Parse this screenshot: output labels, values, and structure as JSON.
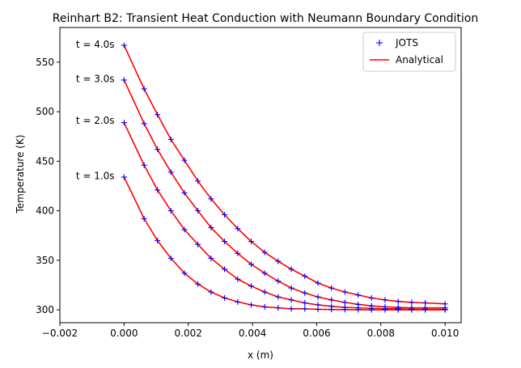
{
  "chart_data": {
    "type": "line",
    "title": "Reinhart B2: Transient Heat Conduction with Neumann Boundary Condition",
    "xlabel": "x (m)",
    "ylabel": "Temperature (K)",
    "xlim": [
      -0.002,
      0.0105
    ],
    "ylim": [
      287,
      585
    ],
    "xticks": [
      -0.002,
      0.0,
      0.002,
      0.004,
      0.006,
      0.008,
      0.01
    ],
    "xtick_labels": [
      "−0.002",
      "0.000",
      "0.002",
      "0.004",
      "0.006",
      "0.008",
      "0.010"
    ],
    "yticks": [
      300,
      350,
      400,
      450,
      500,
      550
    ],
    "ytick_labels": [
      "300",
      "350",
      "400",
      "450",
      "500",
      "550"
    ],
    "grid": false,
    "legend_position": "top-right",
    "legend": [
      {
        "label": "JOTS",
        "marker": "+",
        "color": "#0000ff"
      },
      {
        "label": "Analytical",
        "line": "solid",
        "color": "#ff0000"
      }
    ],
    "annotations": [
      {
        "text": "t = 1.0s",
        "x": -0.0015,
        "y": 435
      },
      {
        "text": "t = 2.0s",
        "x": -0.0015,
        "y": 491
      },
      {
        "text": "t = 3.0s",
        "x": -0.0015,
        "y": 533
      },
      {
        "text": "t = 4.0s",
        "x": -0.0015,
        "y": 568
      }
    ],
    "x": [
      0.0,
      0.000625,
      0.00104,
      0.00146,
      0.00188,
      0.0023,
      0.00271,
      0.00313,
      0.00354,
      0.00396,
      0.00438,
      0.0048,
      0.00521,
      0.00563,
      0.00604,
      0.00646,
      0.00688,
      0.00729,
      0.00771,
      0.00813,
      0.00854,
      0.00896,
      0.00938,
      0.01
    ],
    "series": [
      {
        "name": "t = 1.0s",
        "values": [
          434,
          392,
          370,
          352,
          337,
          326,
          318,
          312,
          308,
          305,
          303,
          302,
          301,
          301,
          300.5,
          300.3,
          300.2,
          300.1,
          300,
          300,
          300,
          300,
          300,
          300
        ]
      },
      {
        "name": "t = 2.0s",
        "values": [
          489,
          446,
          421,
          400,
          381,
          366,
          352,
          341,
          331,
          324,
          318,
          313,
          310,
          307,
          305,
          303.5,
          302.5,
          302,
          301.5,
          301,
          301,
          300.5,
          300.5,
          300.5
        ]
      },
      {
        "name": "t = 3.0s",
        "values": [
          532,
          488,
          462,
          439,
          418,
          400,
          383,
          369,
          357,
          346,
          337,
          329,
          322,
          317,
          313,
          310,
          307.5,
          305.5,
          304,
          303,
          302.5,
          302,
          302,
          302
        ]
      },
      {
        "name": "t = 4.0s",
        "values": [
          567,
          523,
          497,
          472,
          451,
          430,
          412,
          396,
          382,
          369,
          358,
          349,
          341,
          334,
          327,
          322,
          318,
          315,
          312,
          310,
          308.5,
          307.5,
          307,
          306
        ]
      }
    ],
    "colors": {
      "markers": "#0000ff",
      "lines": "#ff0000"
    }
  }
}
